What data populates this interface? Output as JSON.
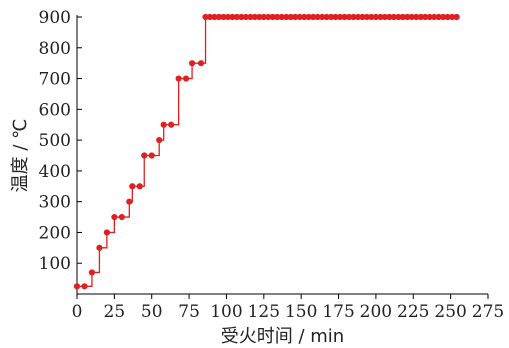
{
  "chart_data": {
    "type": "line",
    "xlabel": "受火时间 / min",
    "ylabel": "温度 / ℃",
    "xlim": [
      0,
      275
    ],
    "ylim": [
      0,
      900
    ],
    "xticks": [
      0,
      25,
      50,
      75,
      100,
      125,
      150,
      175,
      200,
      225,
      250,
      275
    ],
    "yticks": [
      100,
      200,
      300,
      400,
      500,
      600,
      700,
      800,
      900
    ],
    "grid": false,
    "legend": "none",
    "series_color": "#e02020",
    "series": [
      {
        "points": [
          [
            0,
            25
          ],
          [
            5,
            25
          ],
          [
            10,
            70
          ],
          [
            15,
            150
          ],
          [
            20,
            200
          ],
          [
            25,
            250
          ],
          [
            30,
            250
          ],
          [
            35,
            300
          ],
          [
            37,
            350
          ],
          [
            42,
            350
          ],
          [
            45,
            450
          ],
          [
            50,
            450
          ],
          [
            55,
            500
          ],
          [
            58,
            550
          ],
          [
            63,
            550
          ],
          [
            68,
            700
          ],
          [
            73,
            700
          ],
          [
            77,
            750
          ],
          [
            83,
            750
          ]
        ],
        "x_start": 86,
        "x_end": 254,
        "x_step": 3,
        "hold_value": 900
      }
    ]
  }
}
